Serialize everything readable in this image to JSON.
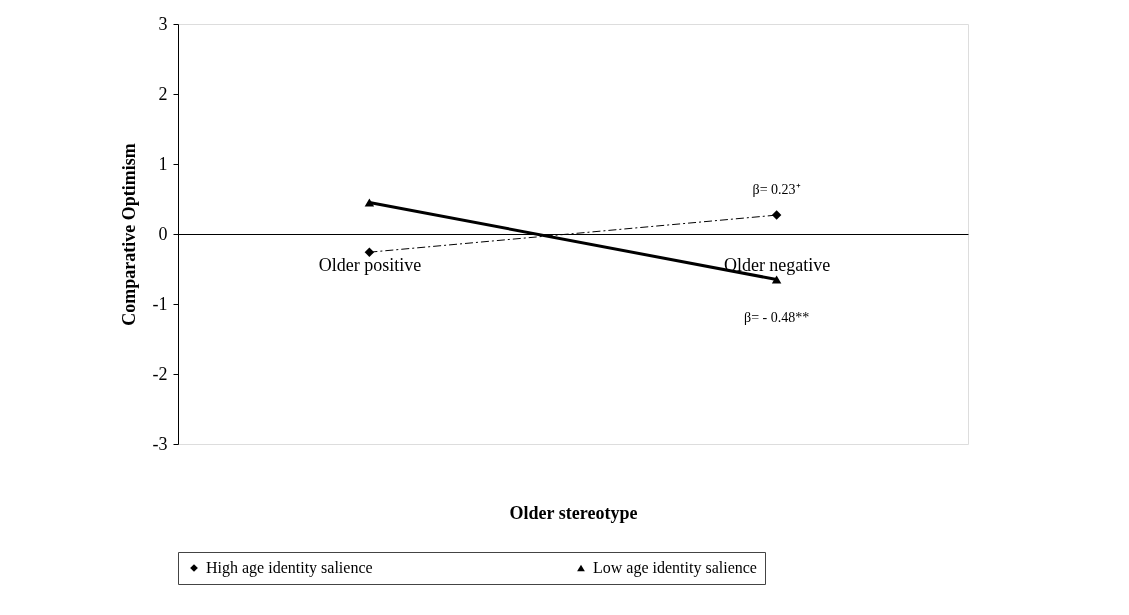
{
  "chart_data": {
    "type": "line",
    "xlabel": "Older stereotype",
    "ylabel": "Comparative Optimism",
    "categories": [
      "Older positive",
      "Older negative"
    ],
    "series": [
      {
        "name": "High age identity salience",
        "color": "#000000",
        "values": [
          -0.26,
          0.27
        ],
        "line_style": "dashed",
        "marker": "diamond"
      },
      {
        "name": "Low age identity salience",
        "color": "#000000",
        "values": [
          0.45,
          -0.65
        ],
        "line_style": "solid",
        "marker": "triangle"
      }
    ],
    "ylim": [
      -3,
      3
    ],
    "yticks": [
      -3,
      -2,
      -1,
      0,
      1,
      2,
      3
    ],
    "grid": false,
    "legend": "bottom",
    "annotations": [
      {
        "text": "β= 0.23⁺",
        "x": "Older negative",
        "y": 0.27
      },
      {
        "text": "β= - 0.48**",
        "x": "Older negative",
        "y": -0.65
      }
    ]
  }
}
